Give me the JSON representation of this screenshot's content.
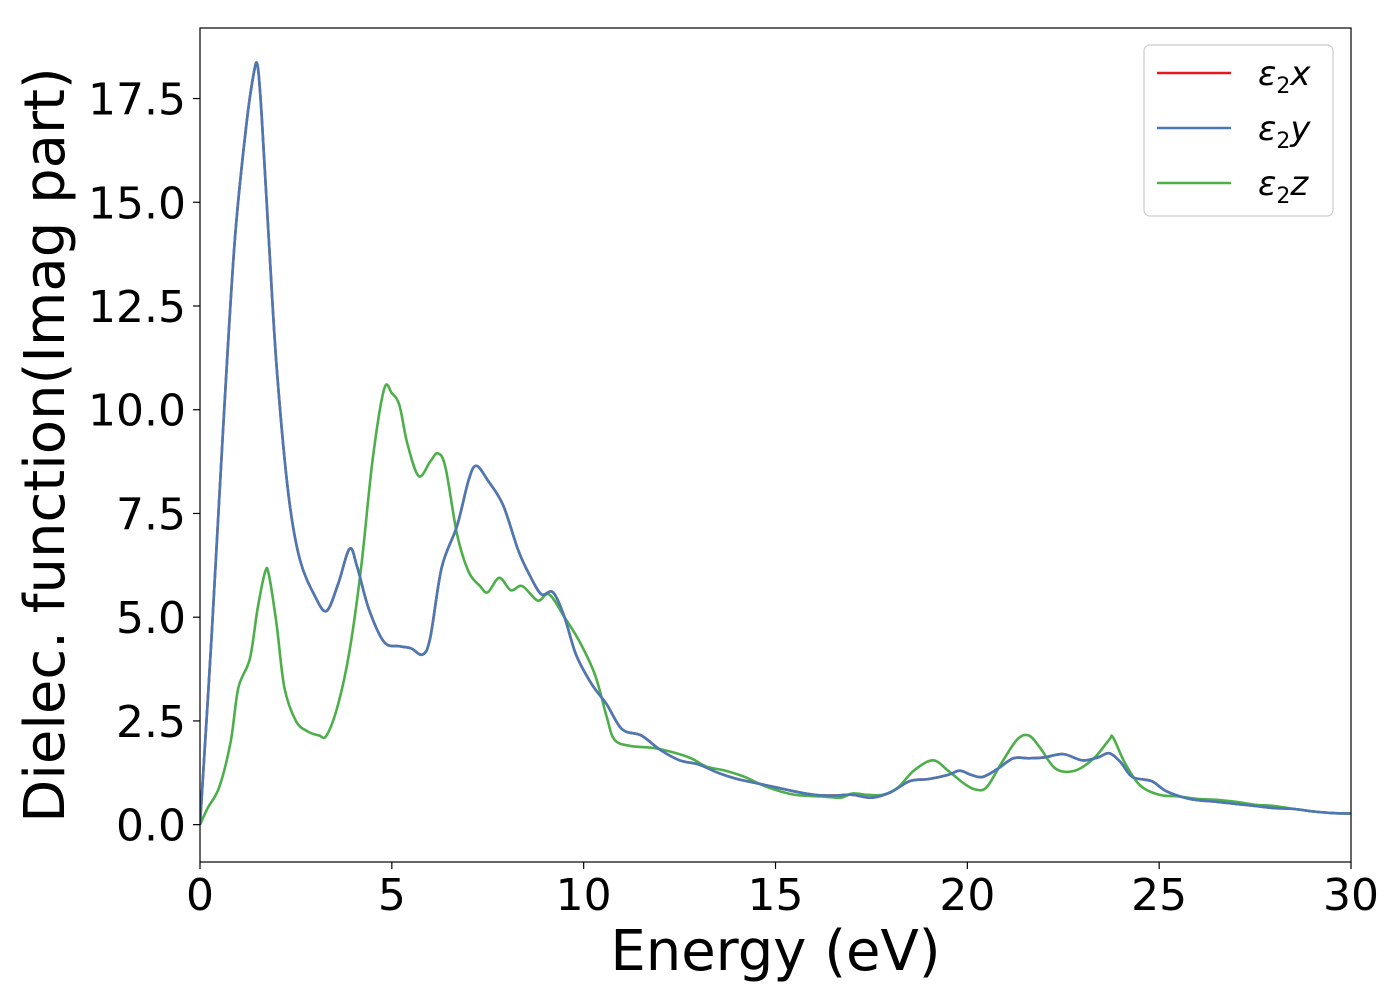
{
  "chart_data": {
    "type": "line",
    "title": "",
    "xlabel": "Energy (eV)",
    "ylabel": "Dielec. function(Imag part)",
    "xlim": [
      0,
      30
    ],
    "ylim": [
      -0.9,
      19.2
    ],
    "xticks": [
      0,
      5,
      10,
      15,
      20,
      25,
      30
    ],
    "xtick_labels": [
      "0",
      "5",
      "10",
      "15",
      "20",
      "25",
      "30"
    ],
    "yticks": [
      0.0,
      2.5,
      5.0,
      7.5,
      10.0,
      12.5,
      15.0,
      17.5
    ],
    "ytick_labels": [
      "0.0",
      "2.5",
      "5.0",
      "7.5",
      "10.0",
      "12.5",
      "15.0",
      "17.5"
    ],
    "grid": false,
    "legend_position": "top-right",
    "series": [
      {
        "name": "ε₂x",
        "legend": {
          "base": "ε",
          "sub": "2",
          "var": "x"
        },
        "color": "#e41a1c",
        "points": [
          [
            0,
            0.0
          ],
          [
            0.3,
            4.5
          ],
          [
            0.6,
            9.5
          ],
          [
            0.9,
            14.0
          ],
          [
            1.2,
            16.8
          ],
          [
            1.4,
            18.1
          ],
          [
            1.5,
            18.3
          ],
          [
            1.6,
            17.2
          ],
          [
            1.8,
            14.0
          ],
          [
            2.0,
            11.0
          ],
          [
            2.3,
            8.0
          ],
          [
            2.6,
            6.4
          ],
          [
            3.0,
            5.5
          ],
          [
            3.3,
            5.15
          ],
          [
            3.6,
            5.8
          ],
          [
            3.9,
            6.65
          ],
          [
            4.1,
            6.2
          ],
          [
            4.4,
            5.2
          ],
          [
            4.8,
            4.4
          ],
          [
            5.2,
            4.3
          ],
          [
            5.5,
            4.25
          ],
          [
            5.8,
            4.1
          ],
          [
            6.0,
            4.5
          ],
          [
            6.3,
            6.2
          ],
          [
            6.7,
            7.2
          ],
          [
            7.0,
            8.3
          ],
          [
            7.2,
            8.65
          ],
          [
            7.5,
            8.3
          ],
          [
            7.9,
            7.7
          ],
          [
            8.3,
            6.6
          ],
          [
            8.6,
            6.0
          ],
          [
            8.9,
            5.55
          ],
          [
            9.2,
            5.6
          ],
          [
            9.5,
            5.0
          ],
          [
            9.8,
            4.1
          ],
          [
            10.2,
            3.4
          ],
          [
            10.6,
            2.9
          ],
          [
            11.0,
            2.3
          ],
          [
            11.5,
            2.15
          ],
          [
            12.0,
            1.8
          ],
          [
            12.5,
            1.55
          ],
          [
            13.0,
            1.45
          ],
          [
            13.5,
            1.25
          ],
          [
            14.0,
            1.1
          ],
          [
            14.5,
            1.0
          ],
          [
            15.0,
            0.9
          ],
          [
            15.5,
            0.8
          ],
          [
            16.0,
            0.72
          ],
          [
            16.5,
            0.7
          ],
          [
            17.0,
            0.72
          ],
          [
            17.5,
            0.65
          ],
          [
            18.0,
            0.78
          ],
          [
            18.5,
            1.05
          ],
          [
            19.0,
            1.1
          ],
          [
            19.5,
            1.2
          ],
          [
            19.8,
            1.3
          ],
          [
            20.1,
            1.2
          ],
          [
            20.4,
            1.15
          ],
          [
            20.8,
            1.35
          ],
          [
            21.2,
            1.6
          ],
          [
            21.6,
            1.6
          ],
          [
            22.0,
            1.62
          ],
          [
            22.5,
            1.7
          ],
          [
            23.0,
            1.55
          ],
          [
            23.4,
            1.62
          ],
          [
            23.7,
            1.72
          ],
          [
            24.0,
            1.5
          ],
          [
            24.3,
            1.15
          ],
          [
            24.8,
            1.05
          ],
          [
            25.2,
            0.8
          ],
          [
            25.8,
            0.62
          ],
          [
            26.5,
            0.55
          ],
          [
            27.0,
            0.5
          ],
          [
            27.5,
            0.45
          ],
          [
            28.0,
            0.4
          ],
          [
            28.5,
            0.38
          ],
          [
            29.0,
            0.32
          ],
          [
            29.5,
            0.28
          ],
          [
            30.0,
            0.27
          ]
        ]
      },
      {
        "name": "ε₂y",
        "legend": {
          "base": "ε",
          "sub": "2",
          "var": "y"
        },
        "color": "#4a7ab5",
        "points": [
          [
            0,
            0.0
          ],
          [
            0.3,
            4.5
          ],
          [
            0.6,
            9.5
          ],
          [
            0.9,
            14.0
          ],
          [
            1.2,
            16.8
          ],
          [
            1.4,
            18.1
          ],
          [
            1.5,
            18.3
          ],
          [
            1.6,
            17.2
          ],
          [
            1.8,
            14.0
          ],
          [
            2.0,
            11.0
          ],
          [
            2.3,
            8.0
          ],
          [
            2.6,
            6.4
          ],
          [
            3.0,
            5.5
          ],
          [
            3.3,
            5.15
          ],
          [
            3.6,
            5.8
          ],
          [
            3.9,
            6.65
          ],
          [
            4.1,
            6.2
          ],
          [
            4.4,
            5.2
          ],
          [
            4.8,
            4.4
          ],
          [
            5.2,
            4.3
          ],
          [
            5.5,
            4.25
          ],
          [
            5.8,
            4.1
          ],
          [
            6.0,
            4.5
          ],
          [
            6.3,
            6.2
          ],
          [
            6.7,
            7.2
          ],
          [
            7.0,
            8.3
          ],
          [
            7.2,
            8.65
          ],
          [
            7.5,
            8.3
          ],
          [
            7.9,
            7.7
          ],
          [
            8.3,
            6.6
          ],
          [
            8.6,
            6.0
          ],
          [
            8.9,
            5.55
          ],
          [
            9.2,
            5.6
          ],
          [
            9.5,
            5.0
          ],
          [
            9.8,
            4.1
          ],
          [
            10.2,
            3.4
          ],
          [
            10.6,
            2.9
          ],
          [
            11.0,
            2.3
          ],
          [
            11.5,
            2.15
          ],
          [
            12.0,
            1.8
          ],
          [
            12.5,
            1.55
          ],
          [
            13.0,
            1.45
          ],
          [
            13.5,
            1.25
          ],
          [
            14.0,
            1.1
          ],
          [
            14.5,
            1.0
          ],
          [
            15.0,
            0.9
          ],
          [
            15.5,
            0.8
          ],
          [
            16.0,
            0.72
          ],
          [
            16.5,
            0.7
          ],
          [
            17.0,
            0.72
          ],
          [
            17.5,
            0.65
          ],
          [
            18.0,
            0.78
          ],
          [
            18.5,
            1.05
          ],
          [
            19.0,
            1.1
          ],
          [
            19.5,
            1.2
          ],
          [
            19.8,
            1.3
          ],
          [
            20.1,
            1.2
          ],
          [
            20.4,
            1.15
          ],
          [
            20.8,
            1.35
          ],
          [
            21.2,
            1.6
          ],
          [
            21.6,
            1.6
          ],
          [
            22.0,
            1.62
          ],
          [
            22.5,
            1.7
          ],
          [
            23.0,
            1.55
          ],
          [
            23.4,
            1.62
          ],
          [
            23.7,
            1.72
          ],
          [
            24.0,
            1.5
          ],
          [
            24.3,
            1.15
          ],
          [
            24.8,
            1.05
          ],
          [
            25.2,
            0.8
          ],
          [
            25.8,
            0.62
          ],
          [
            26.5,
            0.55
          ],
          [
            27.0,
            0.5
          ],
          [
            27.5,
            0.45
          ],
          [
            28.0,
            0.4
          ],
          [
            28.5,
            0.38
          ],
          [
            29.0,
            0.32
          ],
          [
            29.5,
            0.28
          ],
          [
            30.0,
            0.27
          ]
        ]
      },
      {
        "name": "ε₂z",
        "legend": {
          "base": "ε",
          "sub": "2",
          "var": "z"
        },
        "color": "#4daf4a",
        "points": [
          [
            0,
            0.0
          ],
          [
            0.2,
            0.4
          ],
          [
            0.5,
            0.9
          ],
          [
            0.8,
            2.0
          ],
          [
            1.0,
            3.3
          ],
          [
            1.3,
            4.0
          ],
          [
            1.5,
            5.2
          ],
          [
            1.7,
            6.1
          ],
          [
            1.8,
            6.0
          ],
          [
            2.0,
            4.8
          ],
          [
            2.2,
            3.3
          ],
          [
            2.5,
            2.5
          ],
          [
            2.8,
            2.25
          ],
          [
            3.1,
            2.15
          ],
          [
            3.3,
            2.15
          ],
          [
            3.6,
            2.9
          ],
          [
            3.9,
            4.2
          ],
          [
            4.2,
            6.2
          ],
          [
            4.5,
            8.8
          ],
          [
            4.8,
            10.5
          ],
          [
            5.0,
            10.4
          ],
          [
            5.2,
            10.1
          ],
          [
            5.4,
            9.2
          ],
          [
            5.7,
            8.4
          ],
          [
            6.0,
            8.75
          ],
          [
            6.2,
            8.95
          ],
          [
            6.4,
            8.6
          ],
          [
            6.7,
            7.0
          ],
          [
            7.0,
            6.1
          ],
          [
            7.3,
            5.75
          ],
          [
            7.5,
            5.6
          ],
          [
            7.8,
            5.95
          ],
          [
            8.1,
            5.65
          ],
          [
            8.4,
            5.75
          ],
          [
            8.8,
            5.4
          ],
          [
            9.1,
            5.55
          ],
          [
            9.5,
            5.0
          ],
          [
            9.9,
            4.4
          ],
          [
            10.3,
            3.6
          ],
          [
            10.6,
            2.6
          ],
          [
            10.8,
            2.05
          ],
          [
            11.2,
            1.9
          ],
          [
            11.8,
            1.85
          ],
          [
            12.3,
            1.75
          ],
          [
            12.8,
            1.6
          ],
          [
            13.2,
            1.4
          ],
          [
            13.7,
            1.3
          ],
          [
            14.2,
            1.15
          ],
          [
            14.8,
            0.9
          ],
          [
            15.5,
            0.72
          ],
          [
            16.2,
            0.68
          ],
          [
            16.7,
            0.65
          ],
          [
            17.0,
            0.75
          ],
          [
            17.4,
            0.72
          ],
          [
            17.8,
            0.72
          ],
          [
            18.2,
            0.9
          ],
          [
            18.6,
            1.3
          ],
          [
            19.1,
            1.55
          ],
          [
            19.5,
            1.3
          ],
          [
            19.9,
            1.0
          ],
          [
            20.2,
            0.85
          ],
          [
            20.5,
            0.9
          ],
          [
            20.9,
            1.5
          ],
          [
            21.3,
            2.05
          ],
          [
            21.6,
            2.15
          ],
          [
            21.9,
            1.85
          ],
          [
            22.3,
            1.35
          ],
          [
            22.8,
            1.3
          ],
          [
            23.3,
            1.6
          ],
          [
            23.7,
            2.05
          ],
          [
            23.8,
            2.1
          ],
          [
            24.1,
            1.5
          ],
          [
            24.5,
            0.95
          ],
          [
            25.0,
            0.72
          ],
          [
            25.5,
            0.68
          ],
          [
            26.0,
            0.62
          ],
          [
            26.5,
            0.6
          ],
          [
            27.0,
            0.55
          ],
          [
            27.5,
            0.48
          ],
          [
            28.0,
            0.45
          ],
          [
            28.5,
            0.38
          ],
          [
            29.0,
            0.32
          ],
          [
            29.5,
            0.28
          ],
          [
            30.0,
            0.27
          ]
        ]
      }
    ]
  }
}
